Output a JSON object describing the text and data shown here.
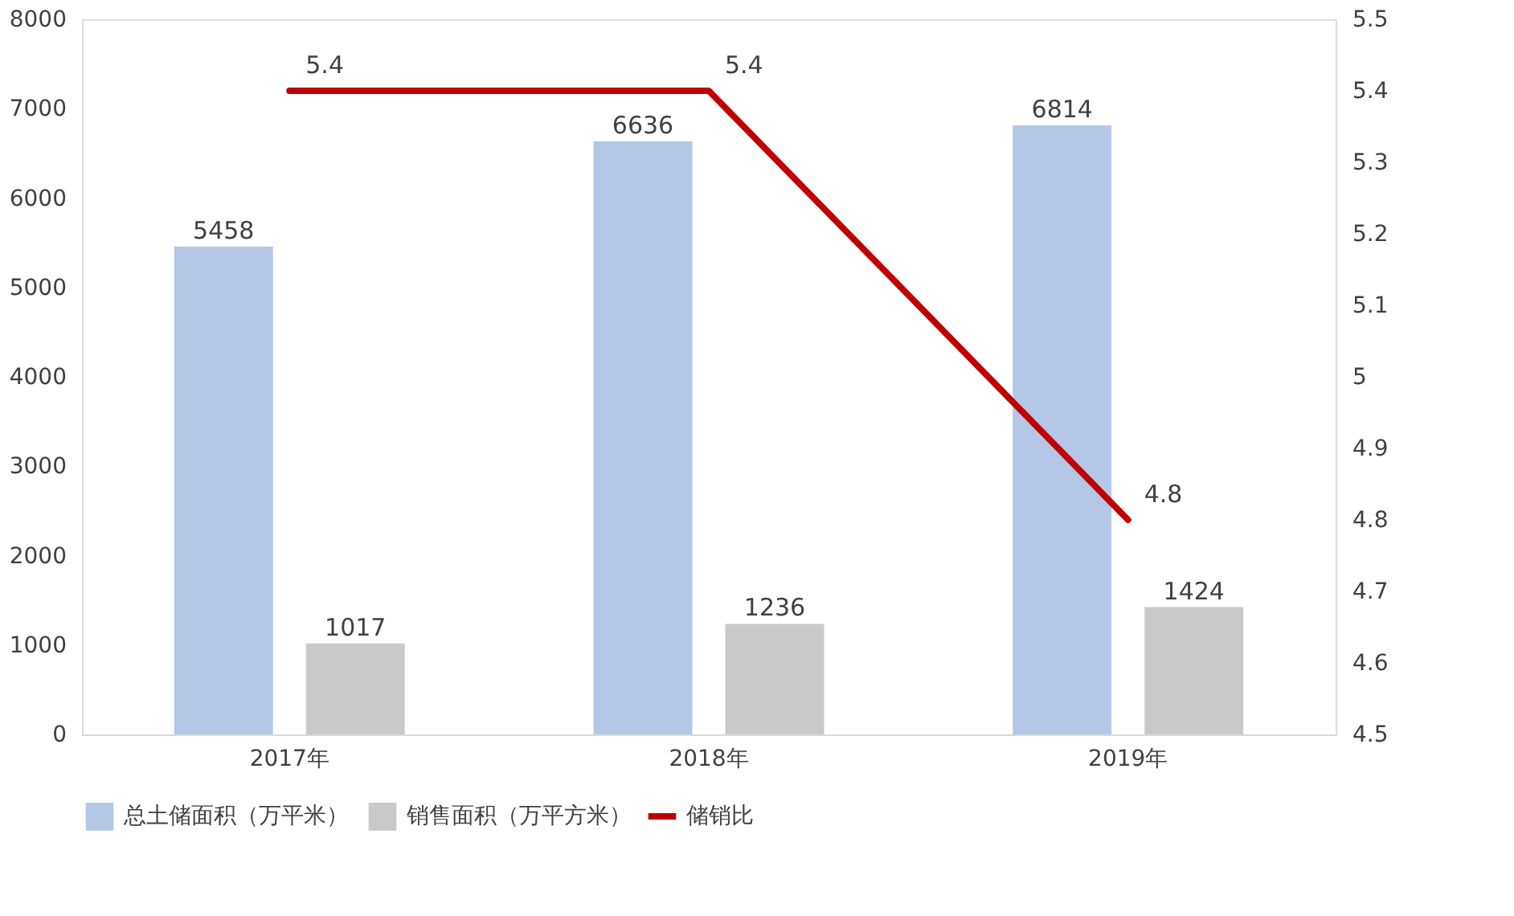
{
  "chart_data": {
    "type": "bar",
    "categories": [
      "2017年",
      "2018年",
      "2019年"
    ],
    "series": [
      {
        "name": "总土储面积（万平米）",
        "color": "#b4c7e7",
        "values": [
          5458,
          6636,
          6814
        ]
      },
      {
        "name": "销售面积（万平方米）",
        "color": "#c9c9c9",
        "values": [
          1017,
          1236,
          1424
        ]
      },
      {
        "name": "储销比",
        "color": "#c00000",
        "type": "line",
        "axis": "y2",
        "values": [
          5.4,
          5.4,
          4.8
        ]
      }
    ],
    "ylim": [
      0,
      8000
    ],
    "yticks": [
      0,
      1000,
      2000,
      3000,
      4000,
      5000,
      6000,
      7000,
      8000
    ],
    "y2lim": [
      4.5,
      5.5
    ],
    "y2ticks": [
      4.5,
      4.6,
      4.7,
      4.8,
      4.9,
      5,
      5.1,
      5.2,
      5.3,
      5.4,
      5.5
    ],
    "data_labels": true,
    "grid": false,
    "legend": "bottom",
    "marker": "none",
    "line_style": "solid"
  }
}
